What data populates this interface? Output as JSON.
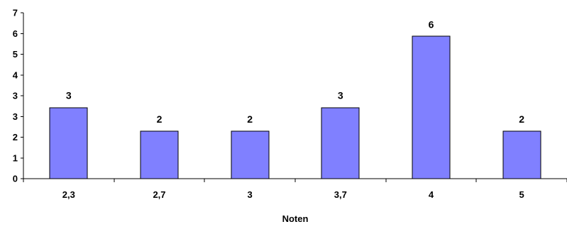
{
  "chart_data": {
    "type": "bar",
    "title": "",
    "xlabel": "Noten",
    "ylabel": "",
    "categories": [
      "2,3",
      "2,7",
      "3",
      "3,7",
      "4",
      "5"
    ],
    "values": [
      3,
      2,
      2,
      3,
      6,
      2
    ],
    "data_labels": [
      "3",
      "2",
      "2",
      "3",
      "6",
      "2"
    ],
    "yticks": [
      "0",
      "1",
      "2",
      "3",
      "3",
      "4",
      "5",
      "6",
      "7"
    ],
    "ylim": [
      0,
      7
    ],
    "grid": false,
    "legend": "none",
    "bar_color": "#8080FF",
    "bar_border_color": "#000000"
  }
}
